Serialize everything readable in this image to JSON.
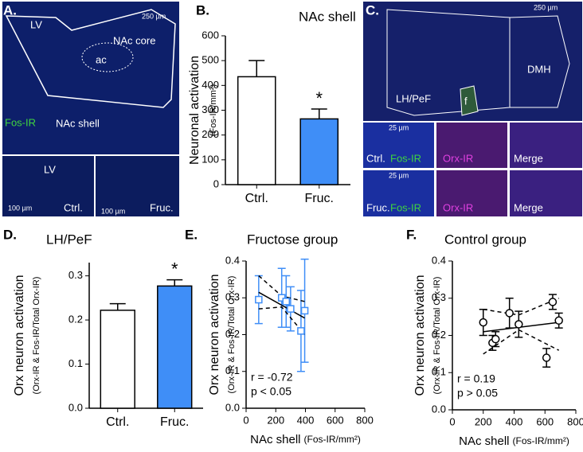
{
  "panel_labels": [
    "A.",
    "B.",
    "C.",
    "D.",
    "E.",
    "F."
  ],
  "image_a": {
    "labels": [
      "LV",
      "NAc core",
      "ac",
      "NAc shell",
      "Fos-IR",
      "LV",
      "Ctrl.",
      "Fruc."
    ],
    "scales": [
      "250 µm",
      "100 µm",
      "100 µm"
    ]
  },
  "image_c": {
    "labels": [
      "LH/PeF",
      "f",
      "DMH"
    ],
    "scales": [
      "250 µm",
      "25 µm",
      "25 µm"
    ],
    "rows": [
      [
        "Ctrl.",
        "Fos-IR",
        "Orx-IR",
        "Merge"
      ],
      [
        "Fruc.",
        "Fos-IR",
        "Orx-IR",
        "Merge"
      ]
    ]
  },
  "chart_data": [
    {
      "type": "bar",
      "title": "NAc shell",
      "ylabel": "Neuronal activation",
      "ylabel_sub": "(Fos-IR/mm²)",
      "categories": [
        "Ctrl.",
        "Fruc."
      ],
      "values": [
        435,
        265
      ],
      "errors": [
        65,
        40
      ],
      "colors": [
        "#ffffff",
        "#3f8ef7"
      ],
      "significance": [
        null,
        "*"
      ],
      "ylim": [
        0,
        600
      ],
      "yticks": [
        0,
        100,
        200,
        300,
        400,
        500,
        600
      ]
    },
    {
      "type": "bar",
      "title": "LH/PeF",
      "ylabel": "Orx neuron activation",
      "ylabel_sub": "(Orx-IR & Fos-IR/Total Orx-IR)",
      "categories": [
        "Ctrl.",
        "Fruc."
      ],
      "values": [
        0.222,
        0.277
      ],
      "errors": [
        0.015,
        0.014
      ],
      "colors": [
        "#ffffff",
        "#3f8ef7"
      ],
      "significance": [
        null,
        "*"
      ],
      "ylim": [
        0,
        0.33
      ],
      "yticks": [
        {
          "value": 0,
          "label": "0.0"
        },
        0.1,
        0.2,
        0.3
      ]
    },
    {
      "type": "scatter",
      "title": "Fructose group",
      "xlabel": "NAc shell",
      "xlabel_sub": "(Fos-IR/mm²)",
      "ylabel": "Orx neuron activation",
      "ylabel_sub": "(Orx-IR & Fos-IR/Total Orx-IR)",
      "marker": "square",
      "color": "#3f8ef7",
      "points": {
        "x": [
          85,
          240,
          270,
          300,
          370,
          395
        ],
        "y": [
          0.295,
          0.3,
          0.29,
          0.27,
          0.21,
          0.265
        ],
        "yerr": [
          0.065,
          0.08,
          0.07,
          0.06,
          0.11,
          0.14
        ]
      },
      "fit": {
        "x": [
          85,
          395
        ],
        "y": [
          0.315,
          0.245
        ]
      },
      "ci_upper": {
        "x": [
          85,
          240,
          395
        ],
        "y": [
          0.36,
          0.305,
          0.29
        ]
      },
      "ci_lower": {
        "x": [
          85,
          240,
          395
        ],
        "y": [
          0.27,
          0.275,
          0.2
        ]
      },
      "stats": [
        "r = -0.72",
        "p < 0.05"
      ],
      "xlim": [
        0,
        800
      ],
      "xticks": [
        0,
        200,
        400,
        600,
        800
      ],
      "ylim": [
        0,
        0.4
      ],
      "yticks": [
        {
          "value": 0,
          "label": "0.0"
        },
        0.1,
        0.2,
        0.3,
        0.4
      ]
    },
    {
      "type": "scatter",
      "title": "Control group",
      "xlabel": "NAc shell",
      "xlabel_sub": "(Fos-IR/mm²)",
      "ylabel": "Orx neuron activation",
      "ylabel_sub": "(Orx-IR & Fos-IR/Total Orx-IR)",
      "marker": "circle",
      "color": "#000000",
      "points": {
        "x": [
          200,
          260,
          280,
          370,
          430,
          610,
          650,
          690
        ],
        "y": [
          0.235,
          0.18,
          0.19,
          0.26,
          0.23,
          0.14,
          0.29,
          0.24
        ],
        "yerr": [
          0.035,
          0.02,
          0.02,
          0.04,
          0.035,
          0.025,
          0.02,
          0.02
        ]
      },
      "fit": {
        "x": [
          200,
          690
        ],
        "y": [
          0.21,
          0.235
        ]
      },
      "ci_upper": {
        "x": [
          200,
          430,
          690
        ],
        "y": [
          0.27,
          0.255,
          0.3
        ]
      },
      "ci_lower": {
        "x": [
          200,
          430,
          690
        ],
        "y": [
          0.15,
          0.215,
          0.16
        ]
      },
      "stats": [
        "r = 0.19",
        "p > 0.05"
      ],
      "xlim": [
        0,
        800
      ],
      "xticks": [
        0,
        200,
        400,
        600,
        800
      ],
      "ylim": [
        0,
        0.4
      ],
      "yticks": [
        {
          "value": 0,
          "label": "0.0"
        },
        0.1,
        0.2,
        0.3,
        0.4
      ]
    }
  ]
}
